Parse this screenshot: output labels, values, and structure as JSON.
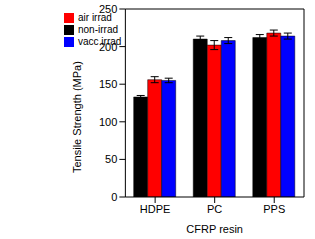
{
  "chart_data": {
    "type": "bar",
    "x_label": "CFRP resin",
    "y_label": "Tensile Strength (MPa)",
    "categories": [
      "HDPE",
      "PC",
      "PPS"
    ],
    "series": [
      {
        "name": "non-irrad",
        "color": "#000000",
        "values": [
          133,
          210,
          212
        ],
        "errors": [
          2,
          4,
          4
        ]
      },
      {
        "name": "air irrad",
        "color": "#ff0000",
        "values": [
          156,
          202,
          218
        ],
        "errors": [
          4,
          6,
          4
        ]
      },
      {
        "name": "vacc irrad",
        "color": "#0000ff",
        "values": [
          155,
          208,
          214
        ],
        "errors": [
          3,
          4,
          4
        ]
      }
    ],
    "ylim": [
      0,
      250
    ],
    "yticks": [
      0,
      50,
      100,
      150,
      200,
      250
    ],
    "legend": "upper left",
    "grid": false
  }
}
